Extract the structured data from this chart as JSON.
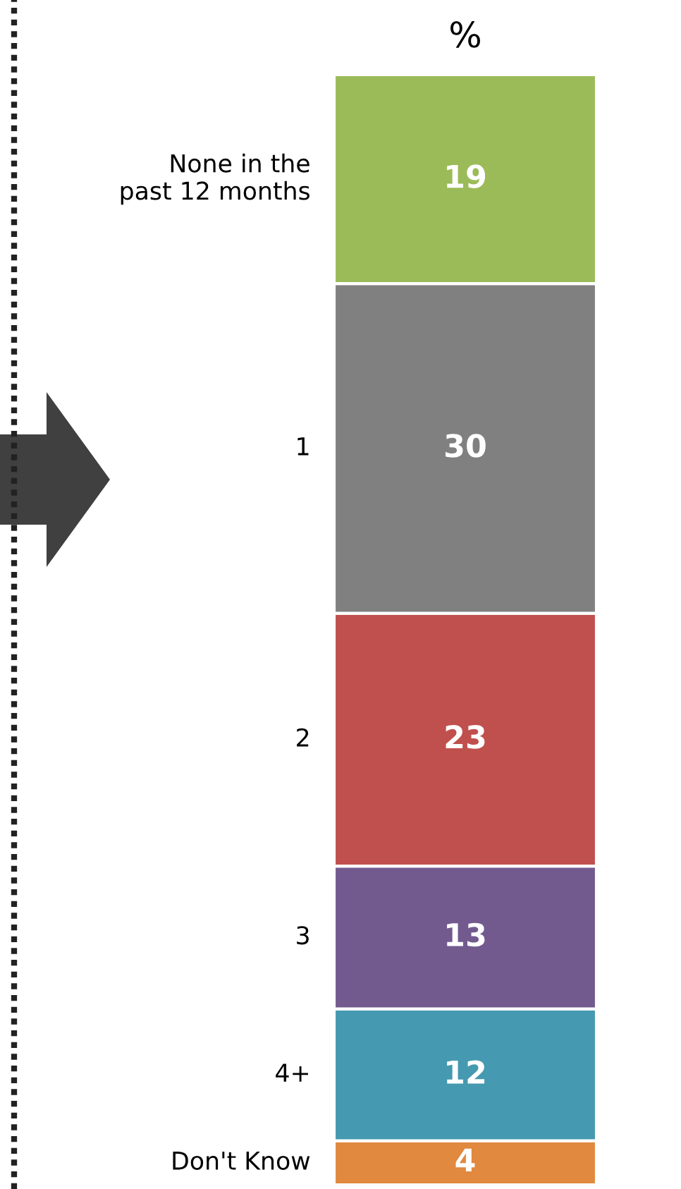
{
  "chart_data": {
    "type": "bar",
    "title": "%",
    "stacked": true,
    "data_labels": true,
    "categories": [
      null
    ],
    "series": [
      {
        "name": "Don't Know",
        "color": "#e0893f",
        "values": [
          4
        ]
      },
      {
        "name": "4+",
        "color": "#4599b0",
        "values": [
          12
        ]
      },
      {
        "name": "3",
        "color": "#725a8f",
        "values": [
          13
        ]
      },
      {
        "name": "2",
        "color": "#c0504d",
        "values": [
          23
        ]
      },
      {
        "name": "1",
        "color": "#808080",
        "values": [
          30
        ]
      },
      {
        "name": "None in the\npast 12 months",
        "color": "#9bbb59",
        "values": [
          19
        ]
      }
    ]
  }
}
